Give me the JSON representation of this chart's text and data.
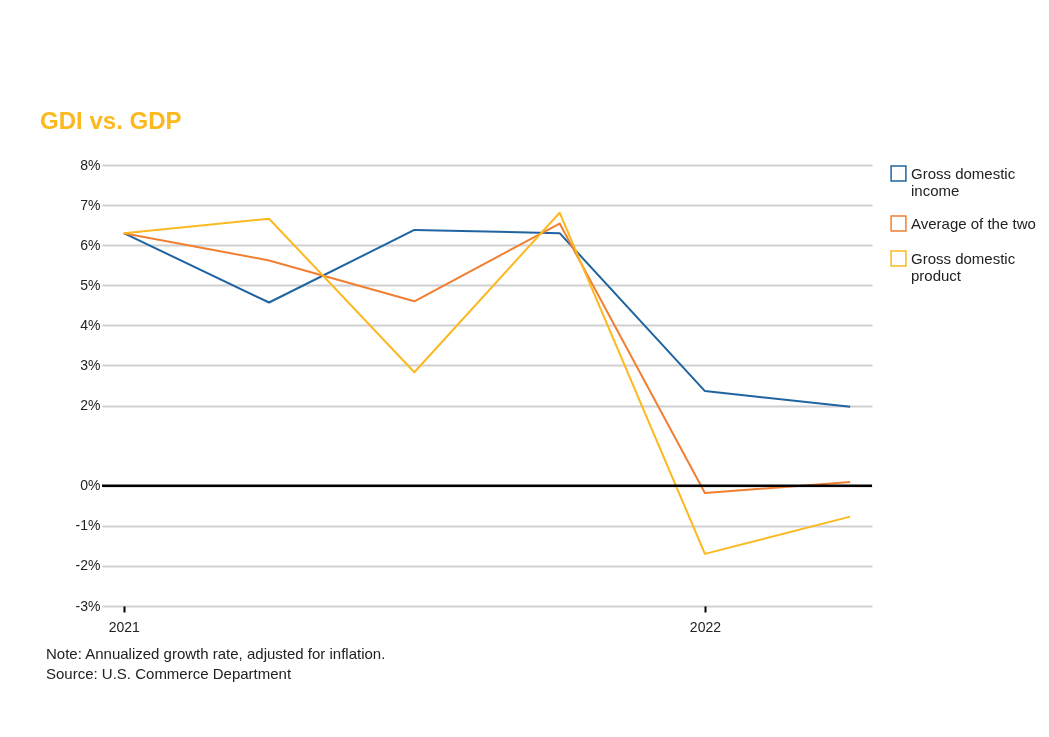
{
  "chart_data": {
    "type": "line",
    "title": "GDI vs. GDP",
    "categories": [
      "2021",
      null,
      null,
      null,
      "2022",
      null
    ],
    "ylim": [
      -3,
      8
    ],
    "yticks": [
      {
        "value": 8,
        "label": "8%"
      },
      {
        "value": 7,
        "label": "7%"
      },
      {
        "value": 6,
        "label": "6%"
      },
      {
        "value": 5,
        "label": "5%"
      },
      {
        "value": 4,
        "label": "4%"
      },
      {
        "value": 3,
        "label": "3%"
      },
      {
        "value": 2,
        "label": "2%"
      },
      {
        "value": 0,
        "label": "0%"
      },
      {
        "value": -1,
        "label": "-1%"
      },
      {
        "value": -2,
        "label": "-2%"
      },
      {
        "value": -3,
        "label": "-3%"
      }
    ],
    "series": [
      {
        "name": "Gross domestic income",
        "color": "#1f64a0",
        "values": [
          6.3,
          4.57,
          6.38,
          6.3,
          2.36,
          1.97
        ]
      },
      {
        "name": "Average of the two",
        "color": "#f07f32",
        "values": [
          6.3,
          5.62,
          4.6,
          6.54,
          -0.18,
          0.09
        ]
      },
      {
        "name": "Gross domestic product",
        "color": "#fbb91f",
        "values": [
          6.3,
          6.66,
          2.83,
          6.81,
          -1.7,
          -0.77
        ]
      }
    ],
    "ref_lines": [
      {
        "axis": "y",
        "value": 0,
        "color": "#000000"
      }
    ],
    "grid": "y",
    "legend": "right",
    "marker": "none",
    "line_style": "solid",
    "annotations": [
      "Note: Annualized growth rate, adjusted for inflation.",
      "Source: U.S. Commerce Department"
    ]
  }
}
